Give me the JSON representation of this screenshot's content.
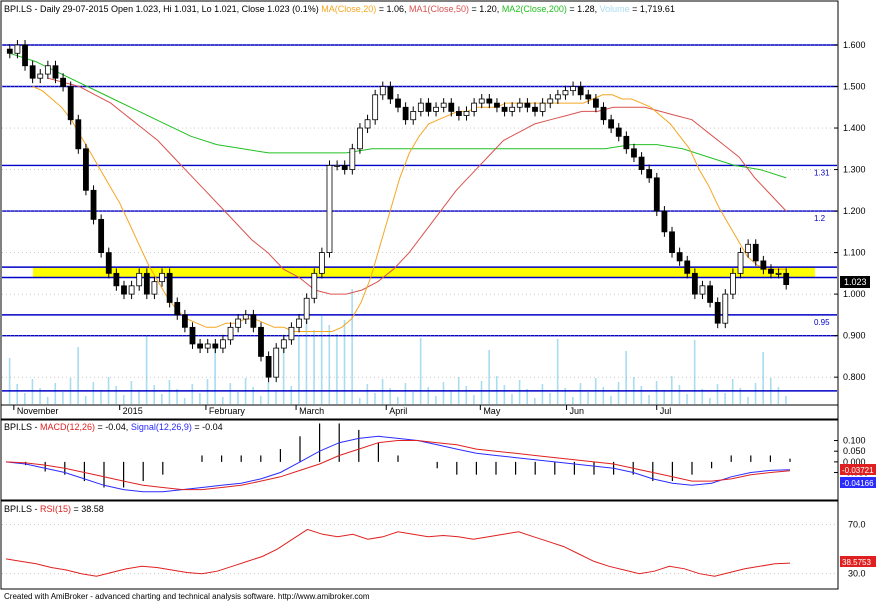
{
  "header": {
    "symbol": "BPI.LS",
    "info": " - Daily 29-07-2015 Open 1.023, Hi 1.031, Lo 1.021, Close 1.023 (0.1%) ",
    "ma_label": "MA(Close,20)",
    "ma_value": " = 1.06, ",
    "ma1_label": "MA1(Close,50)",
    "ma1_value": " = 1.20, ",
    "ma2_label": "MA2(Close,200)",
    "ma2_value": " = 1.28, ",
    "vol_label": "Volume",
    "vol_value": " = 1,719.61"
  },
  "macd_header": {
    "symbol": "BPI.LS",
    "macd_label": "MACD(12,26)",
    "macd_value": " = -0.04, ",
    "signal_label": "Signal(12,26,9)",
    "signal_value": " = -0.04"
  },
  "rsi_header": {
    "symbol": "BPI.LS",
    "rsi_label": "RSI(15)",
    "rsi_value": " = 38.58"
  },
  "last_price_tag": "1.023",
  "macd_tag": "-0.03721",
  "signal_tag": "-0.04166",
  "rsi_tag": "38.5753",
  "footer": "Created with AmiBroker - advanced charting and technical analysis software. http://www.amibroker.com",
  "colors": {
    "up": "#ffffff",
    "down": "#000000",
    "ma20": "#f5a623",
    "ma50": "#d9534f",
    "ma200": "#22c022",
    "volume": "#a8dcf0",
    "hline": "#0000c8",
    "yellow_band": "#ffff00",
    "macd": "#2b2bff",
    "signal": "#e02020",
    "rsi": "#e02020"
  },
  "chart_data": {
    "type": "candlestick",
    "ylim": [
      0.745,
      1.665
    ],
    "yticks": [
      1.6,
      1.5,
      1.4,
      1.3,
      1.2,
      1.1,
      1.0,
      0.9,
      0.8
    ],
    "ytick_labels": [
      "1.600",
      "1.500",
      "1.400",
      "1.300",
      "1.200",
      "1.100",
      "1.000",
      "0.900",
      "0.800"
    ],
    "months": [
      "November",
      "2015",
      "February",
      "March",
      "April",
      "May",
      "Jun",
      "Jul"
    ],
    "horizontal_lines": [
      1.6,
      1.5,
      1.31,
      1.2,
      1.065,
      1.04,
      0.95,
      0.9,
      0.767
    ],
    "line_labels": [
      {
        "value": 1.31,
        "text": "1.31"
      },
      {
        "value": 1.2,
        "text": "1.2"
      },
      {
        "value": 0.95,
        "text": "0.95"
      }
    ],
    "yellow_band": [
      1.04,
      1.065
    ],
    "close": [
      1.58,
      1.6,
      1.55,
      1.52,
      1.53,
      1.55,
      1.52,
      1.5,
      1.42,
      1.35,
      1.25,
      1.18,
      1.1,
      1.05,
      1.02,
      1.0,
      1.02,
      1.05,
      1.0,
      1.03,
      1.05,
      0.98,
      0.95,
      0.92,
      0.88,
      0.87,
      0.88,
      0.87,
      0.89,
      0.92,
      0.94,
      0.95,
      0.92,
      0.85,
      0.8,
      0.87,
      0.89,
      0.92,
      0.94,
      0.99,
      1.05,
      1.1,
      1.31,
      1.31,
      1.3,
      1.35,
      1.4,
      1.42,
      1.48,
      1.5,
      1.47,
      1.45,
      1.42,
      1.44,
      1.46,
      1.44,
      1.45,
      1.46,
      1.44,
      1.43,
      1.44,
      1.46,
      1.47,
      1.46,
      1.45,
      1.44,
      1.45,
      1.46,
      1.45,
      1.44,
      1.46,
      1.47,
      1.48,
      1.49,
      1.5,
      1.48,
      1.47,
      1.45,
      1.42,
      1.4,
      1.38,
      1.35,
      1.33,
      1.3,
      1.28,
      1.2,
      1.15,
      1.1,
      1.08,
      1.05,
      1.0,
      1.02,
      0.98,
      0.93,
      1.0,
      1.05,
      1.1,
      1.12,
      1.08,
      1.06,
      1.05,
      1.05,
      1.023
    ],
    "ma20": [
      1.5,
      1.49,
      1.47,
      1.45,
      1.42,
      1.38,
      1.34,
      1.3,
      1.26,
      1.22,
      1.17,
      1.12,
      1.07,
      1.03,
      0.99,
      0.96,
      0.94,
      0.93,
      0.92,
      0.92,
      0.93,
      0.93,
      0.94,
      0.94,
      0.93,
      0.92,
      0.92,
      0.91,
      0.91,
      0.91,
      0.91,
      0.91,
      0.92,
      0.94,
      0.98,
      1.04,
      1.12,
      1.2,
      1.28,
      1.34,
      1.38,
      1.41,
      1.42,
      1.43,
      1.44,
      1.44,
      1.45,
      1.45,
      1.45,
      1.46,
      1.46,
      1.46,
      1.46,
      1.46,
      1.46,
      1.46,
      1.46,
      1.46,
      1.47,
      1.48,
      1.48,
      1.47,
      1.47,
      1.46,
      1.45,
      1.43,
      1.41,
      1.38,
      1.35,
      1.3,
      1.26,
      1.21,
      1.17,
      1.13,
      1.09,
      1.07,
      1.06,
      1.06,
      1.06
    ],
    "ma50": [
      1.52,
      1.51,
      1.5,
      1.48,
      1.46,
      1.43,
      1.4,
      1.37,
      1.33,
      1.29,
      1.25,
      1.21,
      1.17,
      1.13,
      1.1,
      1.06,
      1.04,
      1.01,
      1.0,
      1.0,
      1.01,
      1.03,
      1.06,
      1.1,
      1.15,
      1.2,
      1.25,
      1.29,
      1.33,
      1.37,
      1.39,
      1.41,
      1.42,
      1.43,
      1.44,
      1.44,
      1.45,
      1.45,
      1.45,
      1.44,
      1.43,
      1.42,
      1.39,
      1.36,
      1.33,
      1.28,
      1.24,
      1.2
    ],
    "ma200": [
      1.58,
      1.56,
      1.53,
      1.5,
      1.47,
      1.44,
      1.41,
      1.38,
      1.36,
      1.35,
      1.34,
      1.34,
      1.34,
      1.34,
      1.35,
      1.35,
      1.35,
      1.35,
      1.35,
      1.35,
      1.35,
      1.35,
      1.35,
      1.35,
      1.36,
      1.36,
      1.35,
      1.33,
      1.31,
      1.3,
      1.28
    ],
    "macd": [
      -0.0,
      -0.01,
      -0.03,
      -0.05,
      -0.08,
      -0.11,
      -0.13,
      -0.14,
      -0.14,
      -0.13,
      -0.12,
      -0.11,
      -0.1,
      -0.08,
      -0.05,
      0.0,
      0.05,
      0.09,
      0.11,
      0.12,
      0.11,
      0.1,
      0.08,
      0.06,
      0.04,
      0.03,
      0.02,
      0.01,
      0.0,
      -0.01,
      -0.02,
      -0.03,
      -0.05,
      -0.08,
      -0.1,
      -0.11,
      -0.1,
      -0.07,
      -0.05,
      -0.04,
      -0.037
    ],
    "signal": [
      0.0,
      -0.005,
      -0.015,
      -0.03,
      -0.05,
      -0.07,
      -0.09,
      -0.11,
      -0.12,
      -0.13,
      -0.13,
      -0.12,
      -0.11,
      -0.09,
      -0.07,
      -0.04,
      -0.01,
      0.03,
      0.06,
      0.09,
      0.1,
      0.1,
      0.09,
      0.08,
      0.06,
      0.05,
      0.04,
      0.03,
      0.02,
      0.01,
      0.0,
      -0.01,
      -0.03,
      -0.05,
      -0.07,
      -0.09,
      -0.09,
      -0.08,
      -0.06,
      -0.05,
      -0.042
    ],
    "macd_ylim": [
      -0.16,
      0.14
    ],
    "macd_ticks": [
      0.1,
      0.05,
      0.0,
      -0.05
    ],
    "macd_tick_labels": [
      "0.100",
      "0.050",
      "0.000",
      "-0.050"
    ],
    "rsi": [
      42,
      40,
      38,
      35,
      33,
      30,
      28,
      31,
      34,
      36,
      35,
      33,
      31,
      30,
      32,
      36,
      40,
      44,
      50,
      58,
      66,
      62,
      60,
      62,
      58,
      60,
      64,
      62,
      60,
      61,
      60,
      58,
      60,
      62,
      64,
      60,
      56,
      52,
      46,
      40,
      36,
      33,
      30,
      32,
      36,
      34,
      30,
      28,
      31,
      34,
      36,
      38,
      38.58
    ],
    "rsi_ylim": [
      20,
      85
    ],
    "rsi_ticks": [
      70,
      30
    ],
    "rsi_tick_labels": [
      "70.0",
      "30.0"
    ]
  }
}
